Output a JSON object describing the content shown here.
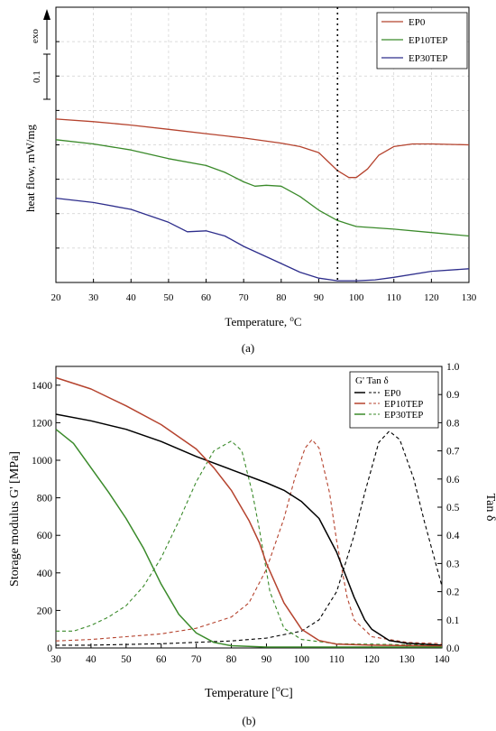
{
  "figure": {
    "panel_a_label": "(a)",
    "panel_b_label": "(b)"
  },
  "chart_data": [
    {
      "type": "line",
      "panel": "(a)",
      "title": "",
      "xlabel": "Temperature, ",
      "xlabel_sup": "o",
      "xlabel_unit": "C",
      "ylabel": "heat flow, mW/mg",
      "exo_label": "exo",
      "scale_bar_label": "0.1",
      "xlim": [
        20,
        130
      ],
      "x_ticks": [
        "20",
        "30",
        "40",
        "50",
        "60",
        "70",
        "80",
        "90",
        "100",
        "110",
        "120",
        "130"
      ],
      "ylim": [
        0,
        1.6
      ],
      "grid": true,
      "legend_placement": "top-right",
      "reference_line_x": 95,
      "series": [
        {
          "name": "EP0",
          "color": "#b5432e",
          "points": [
            [
              20,
              0.95
            ],
            [
              30,
              0.935
            ],
            [
              40,
              0.915
            ],
            [
              50,
              0.89
            ],
            [
              60,
              0.865
            ],
            [
              70,
              0.84
            ],
            [
              80,
              0.81
            ],
            [
              85,
              0.79
            ],
            [
              90,
              0.755
            ],
            [
              95,
              0.65
            ],
            [
              98,
              0.61
            ],
            [
              100,
              0.61
            ],
            [
              103,
              0.66
            ],
            [
              106,
              0.74
            ],
            [
              110,
              0.79
            ],
            [
              115,
              0.805
            ],
            [
              120,
              0.805
            ],
            [
              130,
              0.8
            ]
          ]
        },
        {
          "name": "EP10TEP",
          "color": "#3a8a2a",
          "points": [
            [
              20,
              0.83
            ],
            [
              30,
              0.805
            ],
            [
              40,
              0.77
            ],
            [
              50,
              0.72
            ],
            [
              60,
              0.68
            ],
            [
              65,
              0.64
            ],
            [
              70,
              0.585
            ],
            [
              73,
              0.56
            ],
            [
              76,
              0.565
            ],
            [
              80,
              0.56
            ],
            [
              85,
              0.5
            ],
            [
              90,
              0.42
            ],
            [
              95,
              0.36
            ],
            [
              100,
              0.325
            ],
            [
              110,
              0.31
            ],
            [
              120,
              0.29
            ],
            [
              130,
              0.27
            ]
          ]
        },
        {
          "name": "EP30TEP",
          "color": "#2e2e8c",
          "points": [
            [
              20,
              0.49
            ],
            [
              30,
              0.465
            ],
            [
              40,
              0.425
            ],
            [
              50,
              0.35
            ],
            [
              55,
              0.295
            ],
            [
              60,
              0.3
            ],
            [
              65,
              0.27
            ],
            [
              70,
              0.21
            ],
            [
              80,
              0.11
            ],
            [
              85,
              0.06
            ],
            [
              90,
              0.025
            ],
            [
              95,
              0.01
            ],
            [
              100,
              0.01
            ],
            [
              105,
              0.015
            ],
            [
              110,
              0.03
            ],
            [
              120,
              0.065
            ],
            [
              130,
              0.08
            ]
          ]
        }
      ]
    },
    {
      "type": "line",
      "panel": "(b)",
      "title": "",
      "xlabel": "Temperature [",
      "xlabel_sup": "o",
      "xlabel_unit": "C]",
      "ylabel": "Storage modulus G' [MPa]",
      "y2label": "Tan δ",
      "xlim": [
        30,
        140
      ],
      "x_ticks": [
        "30",
        "40",
        "50",
        "60",
        "70",
        "80",
        "90",
        "100",
        "110",
        "120",
        "130",
        "140"
      ],
      "ylim": [
        0,
        1500
      ],
      "y_ticks": [
        "0",
        "200",
        "400",
        "600",
        "800",
        "1000",
        "1200",
        "1400"
      ],
      "y2lim": [
        0,
        1.0
      ],
      "y2_ticks": [
        "0.0",
        "0.1",
        "0.2",
        "0.3",
        "0.4",
        "0.5",
        "0.6",
        "0.7",
        "0.8",
        "0.9",
        "1.0"
      ],
      "grid": false,
      "legend_placement": "top-right",
      "legend_header": "G'    Tan δ",
      "series": [
        {
          "name": "EP0",
          "color": "#000000",
          "storage_modulus": [
            [
              30,
              1245
            ],
            [
              40,
              1210
            ],
            [
              50,
              1165
            ],
            [
              60,
              1100
            ],
            [
              70,
              1020
            ],
            [
              80,
              950
            ],
            [
              90,
              880
            ],
            [
              95,
              840
            ],
            [
              100,
              780
            ],
            [
              105,
              690
            ],
            [
              110,
              510
            ],
            [
              115,
              270
            ],
            [
              118,
              150
            ],
            [
              120,
              100
            ],
            [
              125,
              40
            ],
            [
              130,
              25
            ],
            [
              140,
              15
            ]
          ],
          "tan_delta": [
            [
              30,
              0.01
            ],
            [
              40,
              0.01
            ],
            [
              60,
              0.015
            ],
            [
              80,
              0.025
            ],
            [
              90,
              0.035
            ],
            [
              100,
              0.06
            ],
            [
              105,
              0.1
            ],
            [
              110,
              0.2
            ],
            [
              115,
              0.4
            ],
            [
              118,
              0.55
            ],
            [
              122,
              0.73
            ],
            [
              125,
              0.77
            ],
            [
              128,
              0.74
            ],
            [
              132,
              0.6
            ],
            [
              135,
              0.45
            ],
            [
              140,
              0.22
            ]
          ]
        },
        {
          "name": "EP10TEP",
          "color": "#b5432e",
          "storage_modulus": [
            [
              30,
              1440
            ],
            [
              40,
              1380
            ],
            [
              50,
              1290
            ],
            [
              60,
              1190
            ],
            [
              70,
              1060
            ],
            [
              75,
              960
            ],
            [
              80,
              840
            ],
            [
              85,
              680
            ],
            [
              88,
              560
            ],
            [
              90,
              450
            ],
            [
              95,
              240
            ],
            [
              100,
              100
            ],
            [
              105,
              40
            ],
            [
              110,
              20
            ],
            [
              120,
              15
            ],
            [
              140,
              10
            ]
          ],
          "tan_delta": [
            [
              30,
              0.025
            ],
            [
              40,
              0.03
            ],
            [
              50,
              0.04
            ],
            [
              60,
              0.05
            ],
            [
              70,
              0.07
            ],
            [
              80,
              0.11
            ],
            [
              85,
              0.16
            ],
            [
              90,
              0.28
            ],
            [
              95,
              0.46
            ],
            [
              98,
              0.6
            ],
            [
              101,
              0.71
            ],
            [
              103,
              0.74
            ],
            [
              105,
              0.71
            ],
            [
              108,
              0.55
            ],
            [
              110,
              0.38
            ],
            [
              113,
              0.18
            ],
            [
              115,
              0.1
            ],
            [
              120,
              0.04
            ],
            [
              130,
              0.02
            ],
            [
              140,
              0.015
            ]
          ]
        },
        {
          "name": "EP30TEP",
          "color": "#3a8a2a",
          "storage_modulus": [
            [
              30,
              1165
            ],
            [
              35,
              1090
            ],
            [
              40,
              960
            ],
            [
              45,
              830
            ],
            [
              50,
              690
            ],
            [
              55,
              530
            ],
            [
              60,
              340
            ],
            [
              65,
              180
            ],
            [
              70,
              80
            ],
            [
              75,
              30
            ],
            [
              80,
              12
            ],
            [
              90,
              5
            ],
            [
              100,
              5
            ],
            [
              140,
              5
            ]
          ],
          "tan_delta": [
            [
              30,
              0.06
            ],
            [
              35,
              0.06
            ],
            [
              40,
              0.08
            ],
            [
              45,
              0.11
            ],
            [
              50,
              0.15
            ],
            [
              55,
              0.22
            ],
            [
              60,
              0.32
            ],
            [
              65,
              0.45
            ],
            [
              70,
              0.59
            ],
            [
              75,
              0.7
            ],
            [
              80,
              0.735
            ],
            [
              83,
              0.7
            ],
            [
              86,
              0.55
            ],
            [
              88,
              0.42
            ],
            [
              91,
              0.2
            ],
            [
              95,
              0.07
            ],
            [
              100,
              0.03
            ],
            [
              110,
              0.015
            ],
            [
              140,
              0.01
            ]
          ]
        }
      ]
    }
  ]
}
